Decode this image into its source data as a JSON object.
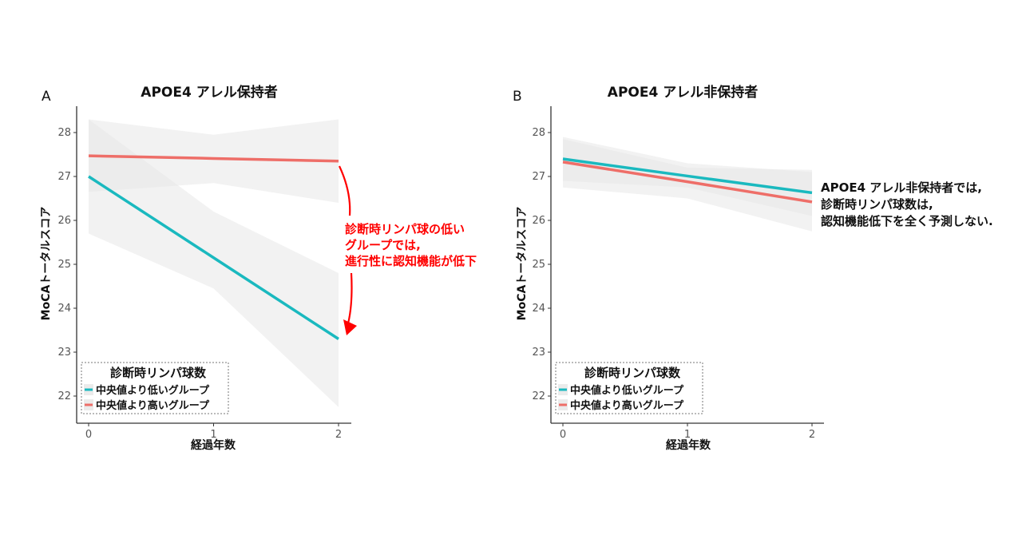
{
  "colors": {
    "low": "#1ab9bf",
    "high": "#ee6e68",
    "ribbon": "#e6e6e6",
    "annotation": "#ff0000"
  },
  "chart_data": [
    {
      "type": "line",
      "panel": "A",
      "title": "APOE4 アレル保持者",
      "xlabel": "経過年数",
      "ylabel": "MoCAトータルスコア",
      "xlim": [
        0,
        2
      ],
      "ylim": [
        21.5,
        28.6
      ],
      "xticks": [
        "0",
        "1",
        "2"
      ],
      "yticks": [
        "22",
        "23",
        "24",
        "25",
        "26",
        "27",
        "28"
      ],
      "legend": {
        "title": "診断時リンパ球数",
        "placement": "bottom-left"
      },
      "series": [
        {
          "name": "中央値より低いグループ",
          "color_key": "low",
          "x": [
            0,
            1,
            2
          ],
          "y": [
            27.0,
            25.15,
            23.3
          ],
          "ci_upper": [
            28.3,
            26.2,
            24.8
          ],
          "ci_lower": [
            25.7,
            24.45,
            21.75
          ]
        },
        {
          "name": "中央値より高いグループ",
          "color_key": "high",
          "x": [
            0,
            1,
            2
          ],
          "y": [
            27.47,
            27.41,
            27.35
          ],
          "ci_upper": [
            28.3,
            27.95,
            28.3
          ],
          "ci_lower": [
            26.65,
            26.85,
            26.4
          ]
        }
      ],
      "annotation": [
        "診断時リンパ球の低い",
        "グループでは,",
        "進行性に認知機能が低下"
      ]
    },
    {
      "type": "line",
      "panel": "B",
      "title": "APOE4 アレル非保持者",
      "xlabel": "経過年数",
      "ylabel": "MoCAトータルスコア",
      "xlim": [
        0,
        2
      ],
      "ylim": [
        21.5,
        28.6
      ],
      "xticks": [
        "0",
        "1",
        "2"
      ],
      "yticks": [
        "22",
        "23",
        "24",
        "25",
        "26",
        "27",
        "28"
      ],
      "legend": {
        "title": "診断時リンパ球数",
        "placement": "bottom-left"
      },
      "series": [
        {
          "name": "中央値より低いグループ",
          "color_key": "low",
          "x": [
            0,
            1,
            2
          ],
          "y": [
            27.4,
            27.01,
            26.63
          ],
          "ci_upper": [
            27.9,
            27.3,
            27.1
          ],
          "ci_lower": [
            26.9,
            26.75,
            26.1
          ]
        },
        {
          "name": "中央値より高いグループ",
          "color_key": "high",
          "x": [
            0,
            1,
            2
          ],
          "y": [
            27.33,
            26.88,
            26.42
          ],
          "ci_upper": [
            27.85,
            27.2,
            27.15
          ],
          "ci_lower": [
            26.75,
            26.5,
            25.75
          ]
        }
      ],
      "annotation": [
        "APOE4 アレル非保持者では,",
        "診断時リンパ球数は,",
        "認知機能低下を全く予測しない."
      ]
    }
  ]
}
